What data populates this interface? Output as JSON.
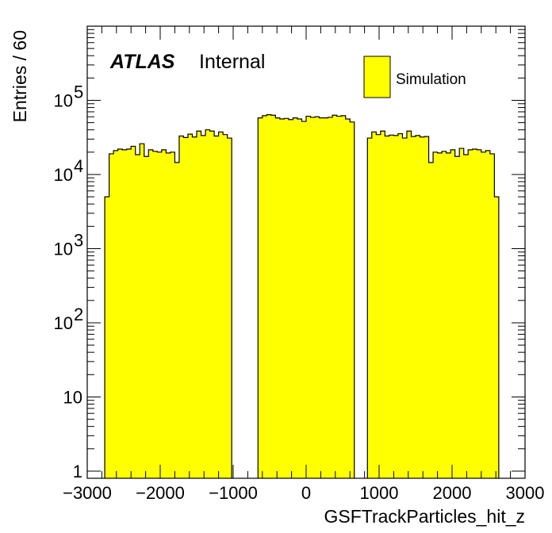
{
  "chart_data": {
    "type": "bar",
    "histogram": true,
    "xlabel": "GSFTrackParticles_hit_z",
    "ylabel": "Entries / 60",
    "bin_width": 60,
    "xlim": [
      -3000,
      3000
    ],
    "ylim": [
      0.8,
      1000000
    ],
    "yscale": "log",
    "x_tick_labels": [
      "−3000",
      "−2000",
      "−1000",
      "0",
      "1000",
      "2000",
      "3000"
    ],
    "y_tick_labels": [
      {
        "base": "1",
        "exp": ""
      },
      {
        "base": "10",
        "exp": ""
      },
      {
        "base": "10",
        "exp": "2"
      },
      {
        "base": "10",
        "exp": "3"
      },
      {
        "base": "10",
        "exp": "4"
      },
      {
        "base": "10",
        "exp": "5"
      }
    ],
    "atlas_label": "ATLAS",
    "atlas_sublabel": "Internal",
    "legend": {
      "placement": "top-right",
      "entries": [
        "Simulation"
      ]
    },
    "fill_color": "#ffff00",
    "line_color": "#000000",
    "grid": false,
    "series": [
      {
        "segments": [
          {
            "x_start": -2760,
            "values": [
              5000,
              19000,
              21000,
              22000,
              21500,
              22000,
              24000,
              18500,
              26000,
              17500,
              21500,
              20500,
              20000,
              21500,
              19500,
              20000,
              14500,
              33000,
              31500,
              35000,
              32000,
              38500,
              33500,
              40000,
              38500,
              33000,
              37500,
              34500,
              31000
            ]
          },
          {
            "x_start": -660,
            "values": [
              58000,
              62000,
              64000,
              63000,
              58000,
              56000,
              57000,
              55000,
              58000,
              56000,
              52000,
              61000,
              59000,
              60000,
              58000,
              58000,
              59000,
              63000,
              61000,
              62000,
              56000,
              51000
            ]
          },
          {
            "x_start": 840,
            "values": [
              31000,
              37500,
              34500,
              38500,
              33000,
              34000,
              33500,
              35500,
              31000,
              38500,
              32500,
              33500,
              32000,
              32500,
              14500,
              20000,
              19500,
              20500,
              19500,
              21500,
              17500,
              22500,
              18500,
              21500,
              22000,
              21500,
              20000,
              21000,
              19000,
              5000
            ]
          }
        ]
      }
    ]
  }
}
